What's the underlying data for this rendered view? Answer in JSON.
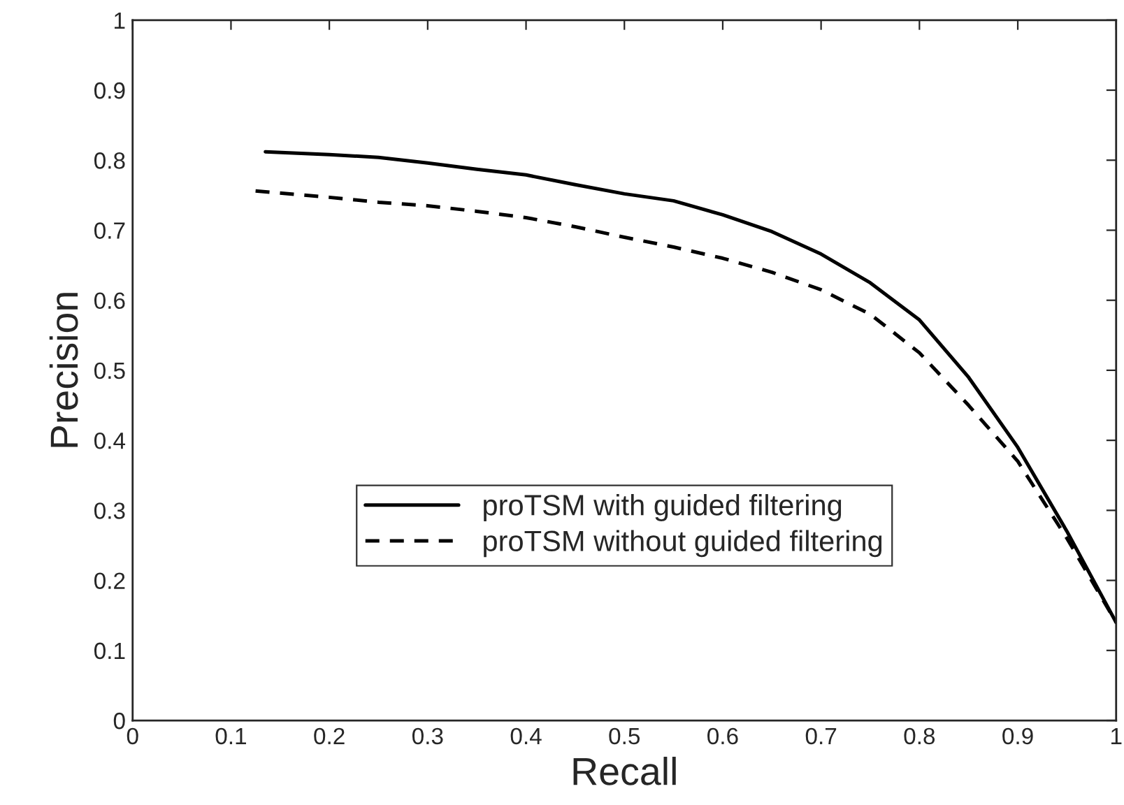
{
  "chart_data": {
    "type": "line",
    "xlabel": "Recall",
    "ylabel": "Precision",
    "xlim": [
      0,
      1
    ],
    "ylim": [
      0,
      1
    ],
    "xticks": [
      0,
      0.1,
      0.2,
      0.3,
      0.4,
      0.5,
      0.6,
      0.7,
      0.8,
      0.9,
      1
    ],
    "yticks": [
      0,
      0.1,
      0.2,
      0.3,
      0.4,
      0.5,
      0.6,
      0.7,
      0.8,
      0.9,
      1
    ],
    "grid": false,
    "legend": "bottom",
    "marker": "none",
    "series": [
      {
        "name": "proTSM with guided filtering",
        "color": "#000000",
        "line_style": "solid",
        "x": [
          0.135,
          0.2,
          0.25,
          0.3,
          0.35,
          0.4,
          0.45,
          0.5,
          0.55,
          0.6,
          0.65,
          0.7,
          0.75,
          0.8,
          0.85,
          0.9,
          0.95,
          1.0
        ],
        "values": [
          0.812,
          0.808,
          0.804,
          0.796,
          0.787,
          0.779,
          0.765,
          0.752,
          0.742,
          0.722,
          0.698,
          0.666,
          0.625,
          0.572,
          0.49,
          0.39,
          0.27,
          0.14
        ]
      },
      {
        "name": "proTSM without guided filtering",
        "color": "#000000",
        "line_style": "dashed",
        "x": [
          0.125,
          0.2,
          0.25,
          0.3,
          0.35,
          0.4,
          0.45,
          0.5,
          0.55,
          0.6,
          0.65,
          0.7,
          0.75,
          0.8,
          0.85,
          0.9,
          0.95,
          1.0
        ],
        "values": [
          0.756,
          0.747,
          0.74,
          0.735,
          0.727,
          0.718,
          0.705,
          0.69,
          0.676,
          0.66,
          0.64,
          0.615,
          0.58,
          0.525,
          0.45,
          0.37,
          0.26,
          0.14
        ]
      }
    ]
  }
}
